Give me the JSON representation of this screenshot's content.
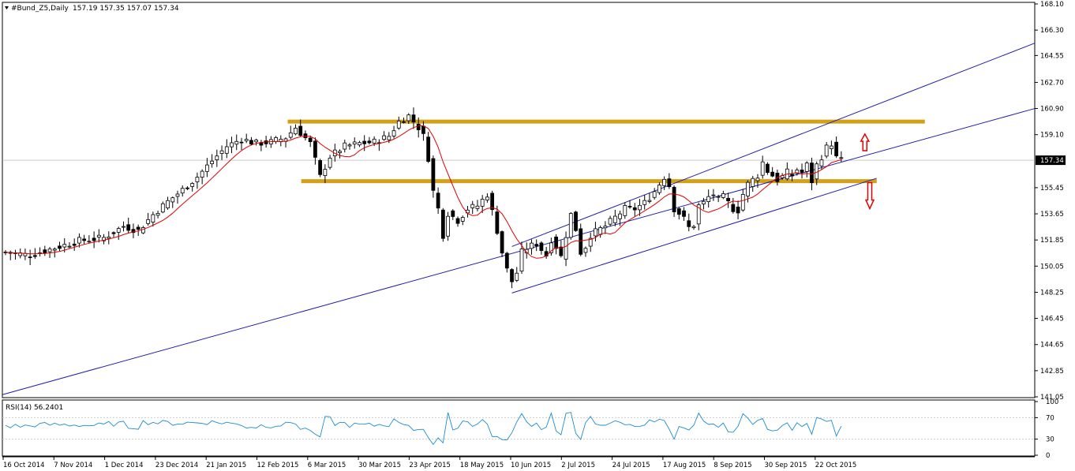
{
  "chart_data": {
    "type": "candlestick",
    "symbol_title": "#Bund_Z5,Daily",
    "ohlc_header": "157.19 157.35 157.07 157.34",
    "price_axis": {
      "min": 141.05,
      "max": 168.1,
      "ticks": [
        "168.10",
        "166.30",
        "164.55",
        "162.70",
        "160.90",
        "159.10",
        "157.34",
        "155.45",
        "153.65",
        "151.85",
        "150.05",
        "148.25",
        "146.45",
        "144.65",
        "142.85",
        "141.05"
      ]
    },
    "current_price": "157.34",
    "date_labels": [
      "16 Oct 2014",
      "7 Nov 2014",
      "1 Dec 2014",
      "23 Dec 2014",
      "21 Jan 2015",
      "12 Feb 2015",
      "6 Mar 2015",
      "30 Mar 2015",
      "23 Apr 2015",
      "18 May 2015",
      "10 Jun 2015",
      "2 Jul 2015",
      "24 Jul 2015",
      "17 Aug 2015",
      "8 Sep 2015",
      "30 Sep 2015",
      "22 Oct 2015"
    ],
    "close_series": [
      [
        0,
        151.0
      ],
      [
        5,
        150.8
      ],
      [
        10,
        151.3
      ],
      [
        15,
        151.8
      ],
      [
        20,
        152.0
      ],
      [
        24,
        152.8
      ],
      [
        27,
        152.5
      ],
      [
        30,
        153.6
      ],
      [
        33,
        154.5
      ],
      [
        36,
        155.3
      ],
      [
        39,
        156.2
      ],
      [
        42,
        157.3
      ],
      [
        45,
        158.3
      ],
      [
        48,
        158.8
      ],
      [
        51,
        158.5
      ],
      [
        54,
        158.6
      ],
      [
        57,
        158.9
      ],
      [
        59,
        159.6
      ],
      [
        62,
        158.5
      ],
      [
        64,
        156.2
      ],
      [
        66,
        157.6
      ],
      [
        69,
        158.3
      ],
      [
        72,
        158.5
      ],
      [
        75,
        158.6
      ],
      [
        78,
        159.0
      ],
      [
        80,
        160.0
      ],
      [
        82,
        160.4
      ],
      [
        84,
        159.6
      ],
      [
        85,
        159.0
      ],
      [
        86,
        157.5
      ],
      [
        87,
        155.2
      ],
      [
        88,
        154.0
      ],
      [
        89,
        152.2
      ],
      [
        90,
        153.7
      ],
      [
        92,
        153.2
      ],
      [
        94,
        154.0
      ],
      [
        96,
        154.2
      ],
      [
        98,
        155.0
      ],
      [
        99,
        153.8
      ],
      [
        100,
        152.5
      ],
      [
        101,
        151.0
      ],
      [
        102,
        149.8
      ],
      [
        103,
        149.0
      ],
      [
        104,
        149.6
      ],
      [
        105,
        151.0
      ],
      [
        106,
        151.3
      ],
      [
        108,
        151.6
      ],
      [
        109,
        151.2
      ],
      [
        110,
        150.8
      ],
      [
        111,
        151.9
      ],
      [
        112,
        151.4
      ],
      [
        113,
        150.7
      ],
      [
        114,
        152.2
      ],
      [
        115,
        153.6
      ],
      [
        116,
        152.6
      ],
      [
        117,
        151.0
      ],
      [
        118,
        151.4
      ],
      [
        119,
        152.2
      ],
      [
        120,
        152.4
      ],
      [
        122,
        152.8
      ],
      [
        124,
        153.4
      ],
      [
        126,
        154.0
      ],
      [
        128,
        154.0
      ],
      [
        130,
        154.4
      ],
      [
        131,
        154.8
      ],
      [
        132,
        155.2
      ],
      [
        133,
        155.7
      ],
      [
        134,
        156.2
      ],
      [
        135,
        155.6
      ],
      [
        136,
        154.0
      ],
      [
        137,
        153.7
      ],
      [
        138,
        153.3
      ],
      [
        139,
        152.7
      ],
      [
        140,
        152.9
      ],
      [
        141,
        154.2
      ],
      [
        142,
        154.4
      ],
      [
        143,
        154.8
      ],
      [
        144,
        155.0
      ],
      [
        145,
        154.6
      ],
      [
        146,
        154.8
      ],
      [
        147,
        154.4
      ],
      [
        148,
        154.0
      ],
      [
        149,
        153.9
      ],
      [
        150,
        155.0
      ],
      [
        151,
        155.7
      ],
      [
        152,
        156.0
      ],
      [
        153,
        156.3
      ],
      [
        154,
        157.2
      ],
      [
        155,
        156.6
      ],
      [
        156,
        156.3
      ],
      [
        157,
        156.0
      ],
      [
        158,
        156.2
      ],
      [
        159,
        156.5
      ],
      [
        160,
        156.3
      ],
      [
        161,
        156.7
      ],
      [
        162,
        156.5
      ],
      [
        163,
        157.0
      ],
      [
        164,
        155.9
      ],
      [
        165,
        157.0
      ],
      [
        166,
        157.6
      ],
      [
        167,
        158.2
      ],
      [
        168,
        158.5
      ],
      [
        169,
        157.5
      ],
      [
        170,
        157.34
      ]
    ],
    "rsi": {
      "label": "RSI(14) 56.2401",
      "levels": [
        "70",
        "30"
      ],
      "scale": [
        "100",
        "0"
      ]
    },
    "annotations": {
      "horizontal_levels": [
        160.0,
        155.9
      ],
      "arrow_up_label": "",
      "arrow_down_label": ""
    },
    "colors": {
      "candle": "#000000",
      "ma": "#e00000",
      "trend": "#1f1faa",
      "level": "#d4a017",
      "rsi": "#1e8bd0",
      "arrow": "#e00000"
    }
  }
}
